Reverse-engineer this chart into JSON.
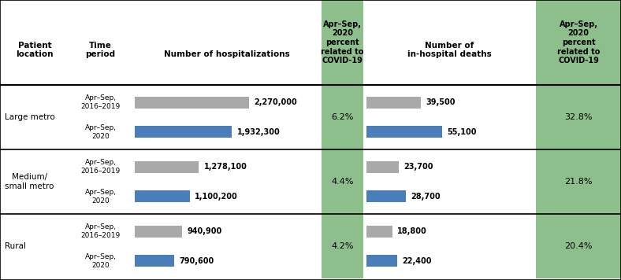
{
  "locations": [
    "Large metro",
    "Medium/\nsmall metro",
    "Rural"
  ],
  "time_labels_top": [
    "Apr–Sep,\n2016–2019",
    "Apr–Sep,\n2016–2019",
    "Apr–Sep,\n2016–2019"
  ],
  "time_labels_bot": [
    "Apr–Sep,\n2020",
    "Apr–Sep,\n2020",
    "Apr–Sep,\n2020"
  ],
  "hosp_values": [
    [
      2270000,
      1932300
    ],
    [
      1278100,
      1100200
    ],
    [
      940900,
      790600
    ]
  ],
  "hosp_labels": [
    [
      "2,270,000",
      "1,932,300"
    ],
    [
      "1,278,100",
      "1,100,200"
    ],
    [
      "940,900",
      "790,600"
    ]
  ],
  "death_values": [
    [
      39500,
      55100
    ],
    [
      23700,
      28700
    ],
    [
      18800,
      22400
    ]
  ],
  "death_labels": [
    [
      "39,500",
      "55,100"
    ],
    [
      "23,700",
      "28,700"
    ],
    [
      "18,800",
      "22,400"
    ]
  ],
  "covid_hosp_pct": [
    "6.2%",
    "4.4%",
    "4.2%"
  ],
  "covid_death_pct": [
    "32.8%",
    "21.8%",
    "20.4%"
  ],
  "bar_color_2019": "#a9a9a9",
  "bar_color_2020": "#4a7eba",
  "green_bg": "#8dbf8d",
  "figsize": [
    7.88,
    3.56
  ],
  "dpi": 100,
  "max_hosp": 2270000,
  "max_death": 55100,
  "col_header_patient": "Patient\nlocation",
  "col_header_time": "Time\nperiod",
  "col_header_hosp": "Number of hospitalizations",
  "col_header_covid_hosp": "Apr–Sep,\n2020\npercent\nrelated to\nCOVID-19",
  "col_header_death": "Number of\nin-hospital deaths",
  "col_header_covid_death": "Apr–Sep,\n2020\npercent\nrelated to\nCOVID-19"
}
